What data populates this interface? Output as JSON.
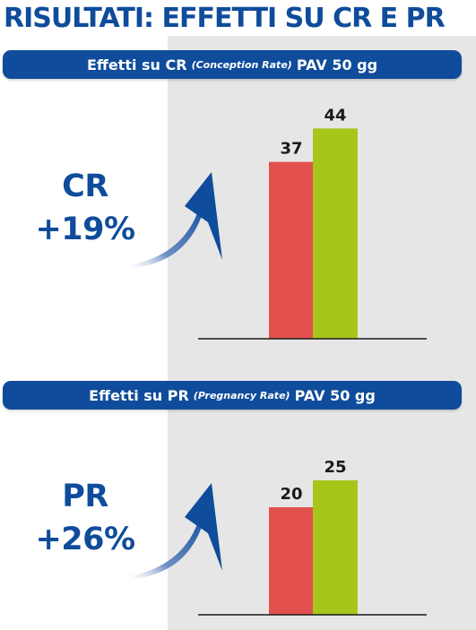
{
  "title": "RISULTATI: EFFETTI SU CR E PR",
  "colors": {
    "title": "#0f4c9b",
    "banner": "#0f4c9b",
    "accent_text": "#0f4c9b",
    "panel_bg": "#e6e6e6",
    "bar_red": "#e2514e",
    "bar_green": "#a7c61a",
    "baseline": "#1a1a1a"
  },
  "panels": [
    {
      "banner": {
        "prefix": "Effetti su CR",
        "paren": "(Conception Rate)",
        "suffix": "PAV 50 gg"
      },
      "metric": "CR",
      "change": "+19%"
    },
    {
      "banner": {
        "prefix": "Effetti su PR",
        "paren": "(Pregnancy Rate)",
        "suffix": "PAV 50 gg"
      },
      "metric": "PR",
      "change": "+26%"
    }
  ],
  "chart_data": [
    {
      "type": "bar",
      "title": "Effetti su CR (Conception Rate) PAV 50 gg",
      "categories": [
        "",
        ""
      ],
      "values": [
        37,
        44
      ],
      "value_labels": [
        "37",
        "44"
      ],
      "colors": [
        "#e2514e",
        "#a7c61a"
      ],
      "ylim": [
        0,
        48
      ],
      "grid": false,
      "legend": "none"
    },
    {
      "type": "bar",
      "title": "Effetti su PR (Pregnancy Rate) PAV 50 gg",
      "categories": [
        "",
        ""
      ],
      "values": [
        20,
        25
      ],
      "value_labels": [
        "20",
        "25"
      ],
      "colors": [
        "#e2514e",
        "#a7c61a"
      ],
      "ylim": [
        0,
        31
      ],
      "grid": false,
      "legend": "none"
    }
  ]
}
